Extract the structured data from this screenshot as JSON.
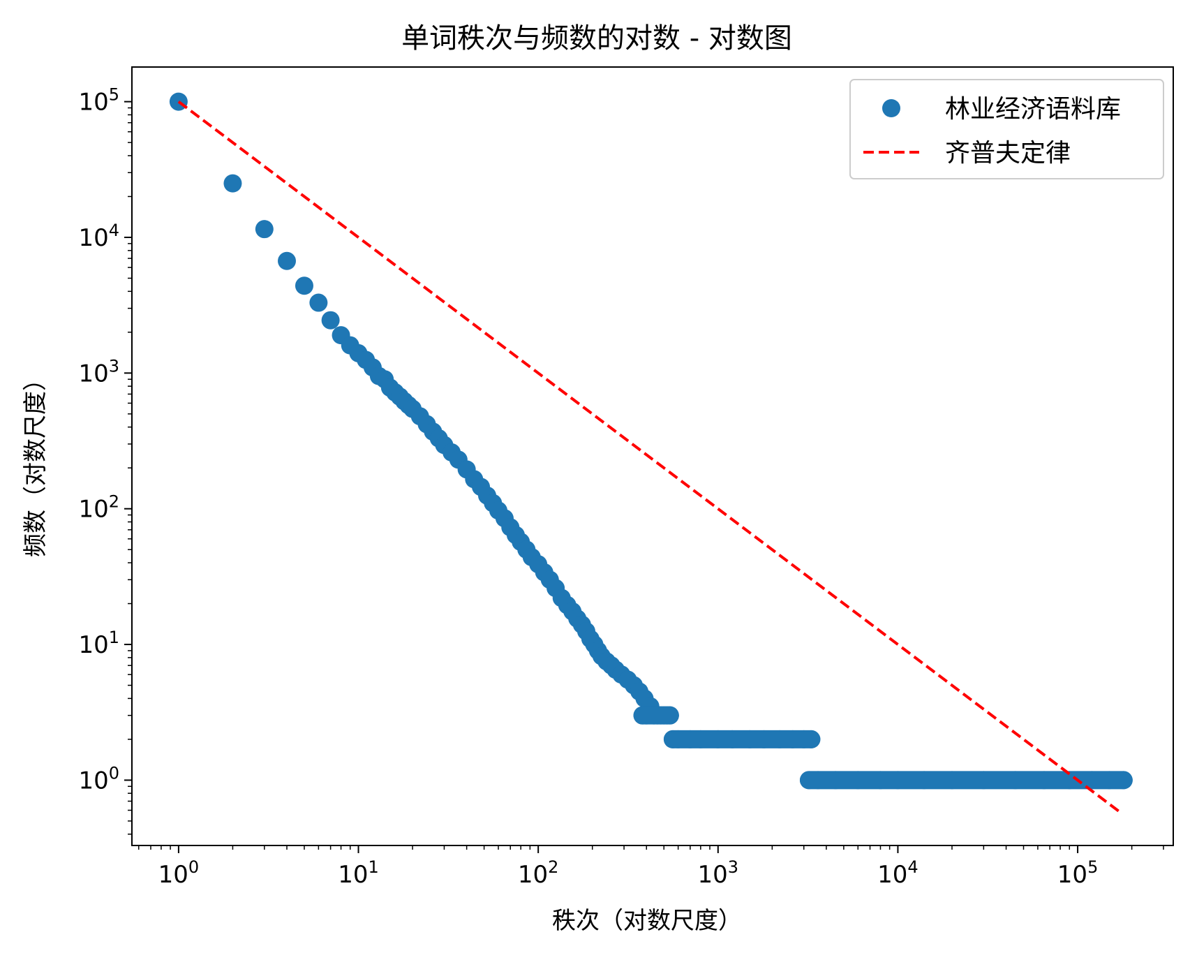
{
  "chart_data": {
    "type": "scatter",
    "title": "单词秩次与频数的对数 - 对数图",
    "xlabel": "秩次（对数尺度）",
    "ylabel": "频数（对数尺度）",
    "x_scale": "log",
    "y_scale": "log",
    "xlim": [
      0.55,
      340000
    ],
    "ylim": [
      0.33,
      180000
    ],
    "x_ticks": [
      1,
      10,
      100,
      1000,
      10000,
      100000
    ],
    "x_tick_labels": [
      {
        "base": "10",
        "exp": "0"
      },
      {
        "base": "10",
        "exp": "1"
      },
      {
        "base": "10",
        "exp": "2"
      },
      {
        "base": "10",
        "exp": "3"
      },
      {
        "base": "10",
        "exp": "4"
      },
      {
        "base": "10",
        "exp": "5"
      }
    ],
    "y_ticks": [
      1,
      10,
      100,
      1000,
      10000,
      100000
    ],
    "y_tick_labels": [
      {
        "base": "10",
        "exp": "0"
      },
      {
        "base": "10",
        "exp": "1"
      },
      {
        "base": "10",
        "exp": "2"
      },
      {
        "base": "10",
        "exp": "3"
      },
      {
        "base": "10",
        "exp": "4"
      },
      {
        "base": "10",
        "exp": "5"
      }
    ],
    "grid": false,
    "legend_position": "top-right",
    "series": [
      {
        "name": "林业经济语料库",
        "style": "markers",
        "color": "#1f77b4",
        "points": [
          [
            1,
            100000
          ],
          [
            2,
            25000
          ],
          [
            3,
            11500
          ],
          [
            4,
            6700
          ],
          [
            5,
            4400
          ],
          [
            6,
            3300
          ],
          [
            7,
            2450
          ],
          [
            8,
            1900
          ],
          [
            9,
            1600
          ],
          [
            10,
            1400
          ],
          [
            11,
            1250
          ],
          [
            12,
            1100
          ],
          [
            13,
            950
          ],
          [
            14,
            900
          ],
          [
            15,
            780
          ],
          [
            16,
            720
          ],
          [
            17,
            670
          ],
          [
            18,
            620
          ],
          [
            19,
            580
          ],
          [
            20,
            545
          ],
          [
            22,
            480
          ],
          [
            24,
            420
          ],
          [
            26,
            370
          ],
          [
            28,
            330
          ],
          [
            30,
            295
          ],
          [
            33,
            260
          ],
          [
            36,
            230
          ],
          [
            40,
            195
          ],
          [
            44,
            165
          ],
          [
            48,
            145
          ],
          [
            52,
            125
          ],
          [
            56,
            110
          ],
          [
            60,
            97
          ],
          [
            65,
            85
          ],
          [
            70,
            73
          ],
          [
            75,
            64
          ],
          [
            80,
            57
          ],
          [
            86,
            50
          ],
          [
            92,
            44
          ],
          [
            100,
            39
          ],
          [
            108,
            34
          ],
          [
            116,
            30
          ],
          [
            125,
            26
          ],
          [
            135,
            22
          ],
          [
            145,
            19.5
          ],
          [
            155,
            17.5
          ],
          [
            165,
            15.5
          ],
          [
            175,
            14
          ],
          [
            185,
            12.5
          ],
          [
            195,
            11
          ],
          [
            205,
            10
          ],
          [
            215,
            9
          ],
          [
            225,
            8.2
          ],
          [
            240,
            7.5
          ],
          [
            255,
            7
          ],
          [
            270,
            6.5
          ],
          [
            290,
            6
          ],
          [
            315,
            5.5
          ],
          [
            340,
            5
          ],
          [
            365,
            4.5
          ],
          [
            390,
            4
          ],
          [
            420,
            3.5
          ],
          [
            440,
            3
          ],
          [
            380,
            3
          ],
          [
            400,
            3
          ],
          [
            460,
            3
          ],
          [
            480,
            3
          ],
          [
            500,
            3
          ],
          [
            520,
            3
          ],
          [
            540,
            3
          ],
          [
            560,
            2
          ],
          [
            600,
            2
          ],
          [
            700,
            2
          ],
          [
            800,
            2
          ],
          [
            1000,
            2
          ],
          [
            1200,
            2
          ],
          [
            1500,
            2
          ],
          [
            1800,
            2
          ],
          [
            2200,
            2
          ],
          [
            2600,
            2
          ],
          [
            3000,
            2
          ],
          [
            3300,
            2
          ],
          [
            3200,
            1
          ],
          [
            3600,
            1
          ],
          [
            4500,
            1
          ],
          [
            6000,
            1
          ],
          [
            8000,
            1
          ],
          [
            10000,
            1
          ],
          [
            14000,
            1
          ],
          [
            20000,
            1
          ],
          [
            30000,
            1
          ],
          [
            45000,
            1
          ],
          [
            65000,
            1
          ],
          [
            90000,
            1
          ],
          [
            120000,
            1
          ],
          [
            150000,
            1
          ],
          [
            180000,
            1
          ]
        ]
      },
      {
        "name": "齐普夫定律",
        "style": "dashed-line",
        "color": "#ff0000",
        "points": [
          [
            1,
            100000
          ],
          [
            170000,
            0.588
          ]
        ]
      }
    ]
  }
}
